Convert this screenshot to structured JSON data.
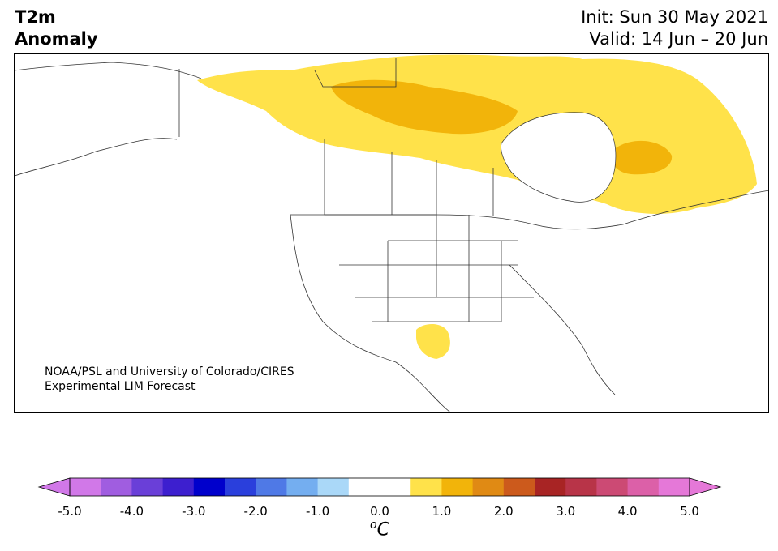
{
  "title": {
    "line1": "T2m",
    "line2": "Anomaly"
  },
  "dates": {
    "init": "Init: Sun 30 May 2021",
    "valid": "Valid: 14 Jun – 20 Jun"
  },
  "credit": {
    "line1": "NOAA/PSL and University of Colorado/CIRES",
    "line2": "Experimental LIM Forecast"
  },
  "colorbar": {
    "ticks": [
      "-5.0",
      "-4.0",
      "-3.0",
      "-2.0",
      "-1.0",
      "0.0",
      "1.0",
      "2.0",
      "3.0",
      "4.0",
      "5.0"
    ],
    "units_prefix": "o",
    "units": "C",
    "colors": [
      "#d178e8",
      "#a05de0",
      "#6a3fd8",
      "#3d1fcf",
      "#0000cc",
      "#2a3fdc",
      "#4f79e6",
      "#74aef0",
      "#aad8f8",
      "#ffffff",
      "#ffffff",
      "#ffe24a",
      "#f2b40a",
      "#e08a14",
      "#cc5a1c",
      "#a82424",
      "#b83448",
      "#cc4a74",
      "#dc60a8",
      "#e578d8"
    ]
  },
  "map_colors": {
    "light_anomaly": "#ffe24a",
    "strong_anomaly": "#f2b40a",
    "border": "#333333"
  }
}
